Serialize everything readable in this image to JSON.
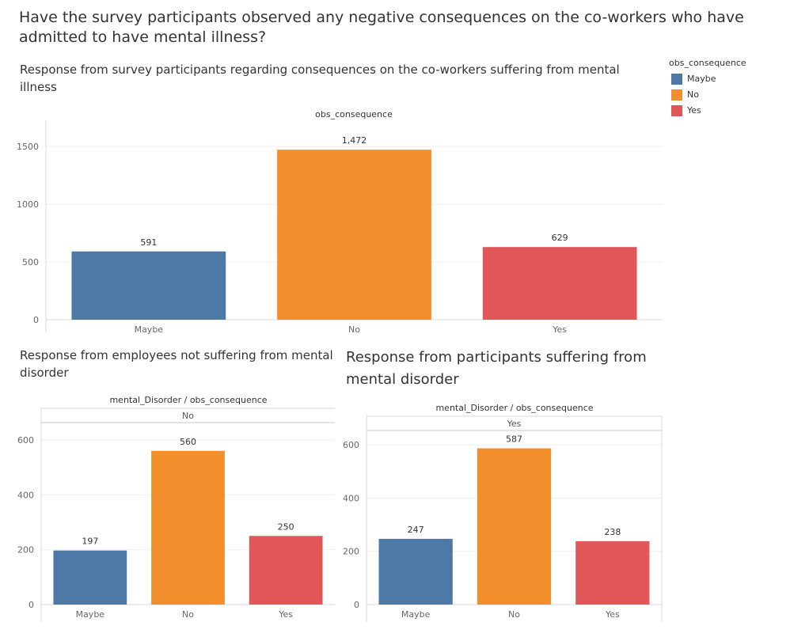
{
  "title": "Have the survey participants observed any negative consequences on the co-workers who have admitted to have mental illness?",
  "legend": {
    "title": "obs_consequence",
    "items": [
      {
        "label": "Maybe",
        "color": "#4e79a7"
      },
      {
        "label": "No",
        "color": "#f28e2b"
      },
      {
        "label": "Yes",
        "color": "#e15759"
      }
    ]
  },
  "chart_data": [
    {
      "type": "bar",
      "title": "Response from survey participants regarding  consequences on the co-workers suffering from mental illness",
      "header": "obs_consequence",
      "panel_label": "",
      "categories": [
        "Maybe",
        "No",
        "Yes"
      ],
      "values": [
        591,
        1472,
        629
      ],
      "value_labels": [
        "591",
        "1,472",
        "629"
      ],
      "colors": [
        "#4e79a7",
        "#f28e2b",
        "#e15759"
      ],
      "ylim": [
        0,
        1600
      ],
      "yticks": [
        0,
        500,
        1000,
        1500
      ],
      "grid": true
    },
    {
      "type": "bar",
      "title": "Response from employees not suffering from mental disorder",
      "header": "mental_Disorder / obs_consequence",
      "panel_label": "No",
      "categories": [
        "Maybe",
        "No",
        "Yes"
      ],
      "values": [
        197,
        560,
        250
      ],
      "value_labels": [
        "197",
        "560",
        "250"
      ],
      "colors": [
        "#4e79a7",
        "#f28e2b",
        "#e15759"
      ],
      "ylim": [
        0,
        640
      ],
      "yticks": [
        0,
        200,
        400,
        600
      ],
      "grid": true
    },
    {
      "type": "bar",
      "title": "Response from participants suffering from mental disorder",
      "header": "mental_Disorder / obs_consequence",
      "panel_label": "Yes",
      "categories": [
        "Maybe",
        "No",
        "Yes"
      ],
      "values": [
        247,
        587,
        238
      ],
      "value_labels": [
        "247",
        "587",
        "238"
      ],
      "colors": [
        "#4e79a7",
        "#f28e2b",
        "#e15759"
      ],
      "ylim": [
        0,
        660
      ],
      "yticks": [
        0,
        200,
        400,
        600
      ],
      "grid": true
    }
  ]
}
